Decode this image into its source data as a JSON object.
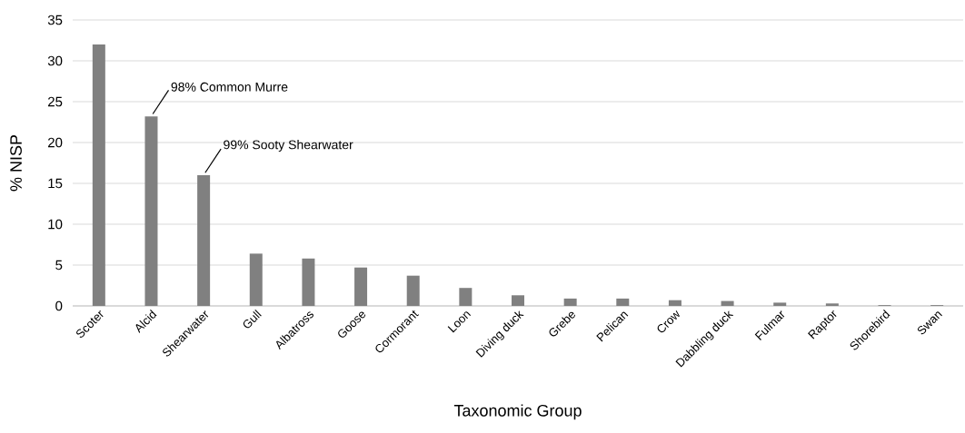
{
  "chart_data": {
    "type": "bar",
    "xlabel": "Taxonomic Group",
    "ylabel": "% NISP",
    "categories": [
      "Scoter",
      "Alcid",
      "Shearwater",
      "Gull",
      "Albatross",
      "Goose",
      "Cormorant",
      "Loon",
      "Diving duck",
      "Grebe",
      "Pelican",
      "Crow",
      "Dabbling duck",
      "Fulmar",
      "Raptor",
      "Shorebird",
      "Swan"
    ],
    "values": [
      32,
      23.2,
      16,
      6.4,
      5.8,
      4.7,
      3.7,
      2.2,
      1.3,
      0.9,
      0.9,
      0.7,
      0.6,
      0.4,
      0.3,
      0.1,
      0.1
    ],
    "color": "#808080",
    "ylim": [
      0,
      35
    ],
    "yticks": [
      0,
      5,
      10,
      15,
      20,
      25,
      30,
      35
    ],
    "grid": "y",
    "annotations": [
      {
        "text": "98% Common Murre",
        "x": "Alcid",
        "y": 23.2
      },
      {
        "text": "99% Sooty Shearwater",
        "x": "Shearwater",
        "y": 16
      }
    ]
  }
}
